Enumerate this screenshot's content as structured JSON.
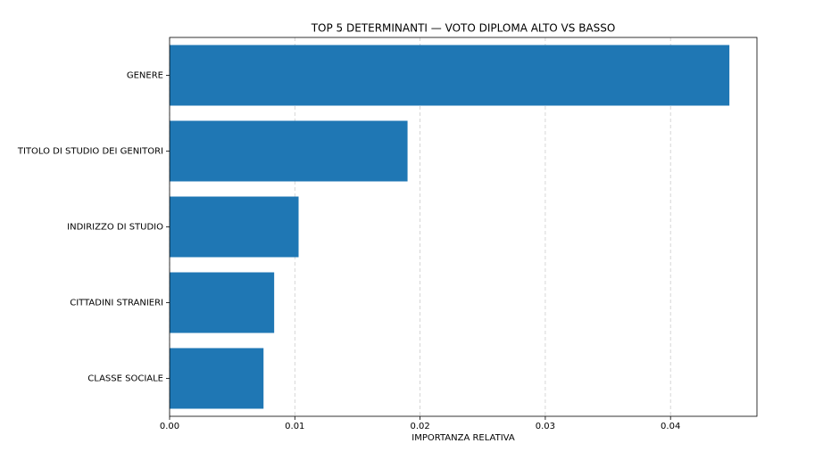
{
  "chart_data": {
    "type": "barh",
    "title": "TOP 5 DETERMINANTI — VOTO DIPLOMA ALTO VS BASSO",
    "xlabel": "IMPORTANZA RELATIVA",
    "categories": [
      "GENERE",
      "TITOLO DI STUDIO DEI GENITORI",
      "INDIRIZZO DI STUDIO",
      "CITTADINI STRANIERI",
      "CLASSE SOCIALE"
    ],
    "values": [
      0.0447,
      0.019,
      0.0103,
      0.00835,
      0.0075
    ],
    "color": "#1f77b4",
    "xlim": [
      0,
      0.0469
    ],
    "xticks": [
      {
        "value": 0,
        "label": "0.00"
      },
      0.01,
      0.02,
      0.03,
      0.04
    ],
    "grid": true
  }
}
